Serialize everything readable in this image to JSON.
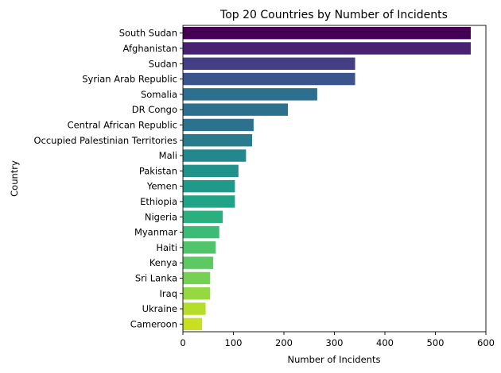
{
  "chart_data": {
    "type": "bar",
    "orientation": "horizontal",
    "title": "Top 20 Countries by Number of Incidents",
    "xlabel": "Number of Incidents",
    "ylabel": "Country",
    "xlim": [
      0,
      600
    ],
    "xticks": [
      0,
      100,
      200,
      300,
      400,
      500,
      600
    ],
    "grid": false,
    "categories": [
      "South Sudan",
      "Afghanistan",
      "Sudan",
      "Syrian Arab Republic",
      "Somalia",
      "DR Congo",
      "Central African Republic",
      "Occupied Palestinian Territories",
      "Mali",
      "Pakistan",
      "Yemen",
      "Ethiopia",
      "Nigeria",
      "Myanmar",
      "Haiti",
      "Kenya",
      "Sri Lanka",
      "Iraq",
      "Ukraine",
      "Cameroon"
    ],
    "values": [
      570,
      570,
      341,
      341,
      266,
      208,
      140,
      137,
      125,
      110,
      103,
      103,
      79,
      72,
      65,
      60,
      54,
      54,
      45,
      38
    ],
    "colors": [
      "#440154",
      "#482173",
      "#433e85",
      "#3a548c",
      "#2d6f8e",
      "#2d708e",
      "#2c728e",
      "#287c8e",
      "#23888e",
      "#21918c",
      "#1f9a8a",
      "#20a386",
      "#2ab07f",
      "#3bbb75",
      "#4fc46a",
      "#5ec962",
      "#75d054",
      "#95d840",
      "#b5de2b",
      "#c8e020"
    ]
  }
}
